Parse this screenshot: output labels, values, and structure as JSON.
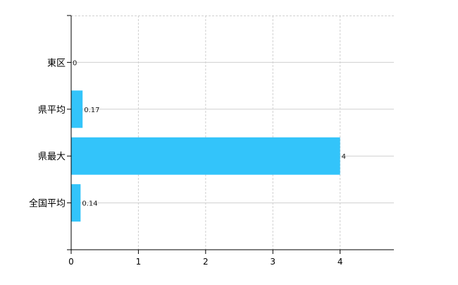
{
  "chart_data": {
    "type": "bar",
    "orientation": "horizontal",
    "title": "",
    "xlabel": "",
    "ylabel": "",
    "categories": [
      "東区",
      "県平均",
      "県最大",
      "全国平均"
    ],
    "values": [
      0,
      0.17,
      4,
      0.14
    ],
    "data_labels": [
      "0",
      "0.17",
      "4",
      "0.14"
    ],
    "xlim": [
      0,
      4.8
    ],
    "xticks": [
      0,
      1,
      2,
      3,
      4
    ],
    "xtick_labels": [
      "0",
      "1",
      "2",
      "3",
      "4"
    ],
    "grid": true,
    "legend": "none",
    "colors": {
      "bar": "#33c4fa",
      "grid": "#d0d0d0",
      "axis": "#000000",
      "label": "#1a1a1a"
    }
  }
}
